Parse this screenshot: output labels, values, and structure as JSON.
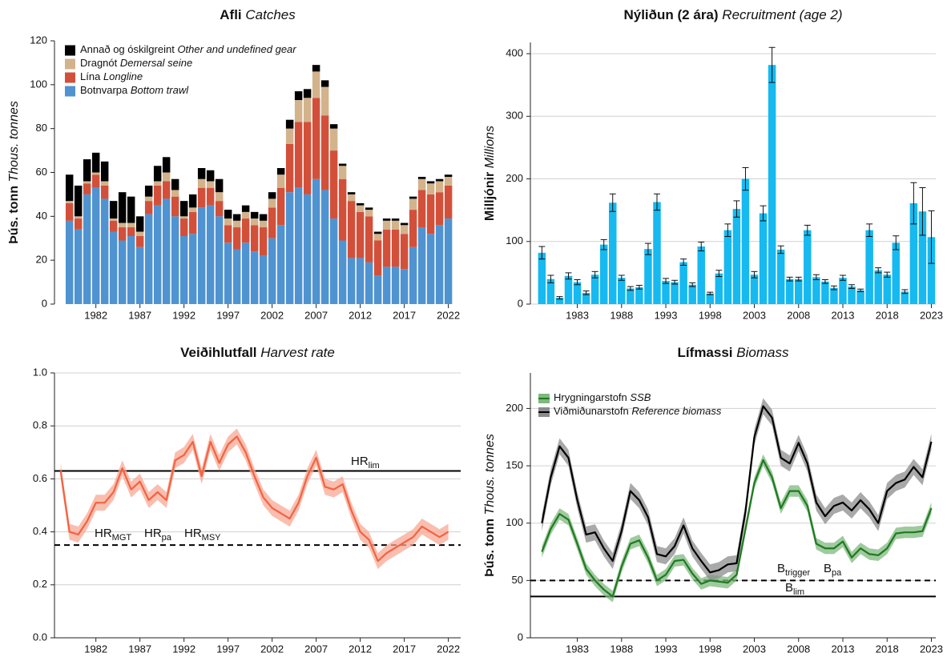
{
  "chart_data": [
    {
      "type": "bar",
      "stacked": true,
      "title": "Afli",
      "title_en": "Catches",
      "ylabel": "Þús. tonn",
      "ylabel_en": "Thous. tonnes",
      "x": [
        1979,
        1980,
        1981,
        1982,
        1983,
        1984,
        1985,
        1986,
        1987,
        1988,
        1989,
        1990,
        1991,
        1992,
        1993,
        1994,
        1995,
        1996,
        1997,
        1998,
        1999,
        2000,
        2001,
        2002,
        2003,
        2004,
        2005,
        2006,
        2007,
        2008,
        2009,
        2010,
        2011,
        2012,
        2013,
        2014,
        2015,
        2016,
        2017,
        2018,
        2019,
        2020,
        2021,
        2022
      ],
      "series": [
        {
          "name": "Botnvarpa",
          "name_en": "Bottom trawl",
          "color": "#4f93d1",
          "values": [
            38,
            34,
            50,
            53,
            48,
            33,
            29,
            31,
            26,
            41,
            45,
            48,
            40,
            31,
            32,
            44,
            45,
            40,
            28,
            25,
            28,
            24,
            22,
            30,
            36,
            51,
            53,
            50,
            57,
            52,
            39,
            29,
            21,
            21,
            19,
            13,
            17,
            17,
            16,
            26,
            35,
            32,
            36,
            39
          ]
        },
        {
          "name": "Lína",
          "name_en": "Longline",
          "color": "#d2503a",
          "values": [
            8,
            5,
            5,
            6,
            6,
            5,
            6,
            4,
            5,
            6,
            9,
            8,
            9,
            8,
            10,
            9,
            8,
            7,
            8,
            10,
            11,
            12,
            13,
            14,
            17,
            22,
            30,
            33,
            37,
            34,
            31,
            28,
            26,
            21,
            21,
            16,
            17,
            17,
            16,
            17,
            17,
            18,
            15,
            15
          ]
        },
        {
          "name": "Dragnót",
          "name_en": "Demersal seine",
          "color": "#d3b38c",
          "values": [
            1,
            1,
            1,
            1,
            2,
            1,
            2,
            2,
            2,
            2,
            2,
            4,
            3,
            1,
            2,
            4,
            3,
            4,
            3,
            3,
            3,
            3,
            3,
            4,
            6,
            7,
            10,
            11,
            12,
            13,
            10,
            6,
            3,
            3,
            3,
            3,
            4,
            4,
            4,
            5,
            5,
            5,
            5,
            4
          ]
        },
        {
          "name": "Annað og óskilgreint",
          "name_en": "Other and undefined gear",
          "color": "#000000",
          "values": [
            12,
            14,
            10,
            9,
            9,
            8,
            14,
            12,
            7,
            5,
            7,
            7,
            5,
            7,
            6,
            5,
            5,
            6,
            4,
            3,
            3,
            3,
            3,
            3,
            3,
            4,
            4,
            4,
            3,
            3,
            2,
            1,
            1,
            1,
            1,
            1,
            1,
            1,
            1,
            1,
            1,
            1,
            1,
            1
          ]
        }
      ],
      "xlim": [
        1977.3,
        2023.4
      ],
      "xticks": [
        1982,
        1987,
        1992,
        1997,
        2002,
        2007,
        2012,
        2017,
        2022
      ],
      "ylim": [
        0,
        120
      ],
      "yticks": [
        0,
        20,
        40,
        60,
        80,
        100,
        120
      ],
      "grid": false,
      "legend": "top-left"
    },
    {
      "type": "bar",
      "title": "Nýliðun (2 ára)",
      "title_en": "Recruitment (age 2)",
      "ylabel": "Milljónir",
      "ylabel_en": "Millions",
      "color": "#16b9f0",
      "x": [
        1979,
        1980,
        1981,
        1982,
        1983,
        1984,
        1985,
        1986,
        1987,
        1988,
        1989,
        1990,
        1991,
        1992,
        1993,
        1994,
        1995,
        1996,
        1997,
        1998,
        1999,
        2000,
        2001,
        2002,
        2003,
        2004,
        2005,
        2006,
        2007,
        2008,
        2009,
        2010,
        2011,
        2012,
        2013,
        2014,
        2015,
        2016,
        2017,
        2018,
        2019,
        2020,
        2021,
        2022,
        2023
      ],
      "values": [
        82,
        40,
        10,
        45,
        35,
        18,
        47,
        95,
        162,
        42,
        25,
        27,
        88,
        163,
        37,
        35,
        67,
        31,
        92,
        17,
        49,
        118,
        152,
        200,
        47,
        145,
        382,
        87,
        40,
        40,
        118,
        43,
        36,
        26,
        42,
        28,
        22,
        118,
        54,
        47,
        98,
        20,
        161,
        148,
        107
      ],
      "errors": [
        10,
        6,
        2,
        5,
        4,
        3,
        5,
        8,
        14,
        4,
        3,
        3,
        9,
        13,
        4,
        3,
        5,
        3,
        7,
        2,
        5,
        10,
        13,
        18,
        5,
        12,
        28,
        6,
        3,
        3,
        8,
        4,
        3,
        3,
        4,
        3,
        2,
        10,
        4,
        4,
        11,
        3,
        33,
        38,
        42
      ],
      "xlim": [
        1977.7,
        2023.5
      ],
      "xticks": [
        1983,
        1988,
        1993,
        1998,
        2003,
        2008,
        2013,
        2018,
        2023
      ],
      "ylim": [
        0,
        418
      ],
      "yticks": [
        0,
        100,
        200,
        300,
        400
      ],
      "grid": true
    },
    {
      "type": "line",
      "title": "Veiðihlutfall",
      "title_en": "Harvest rate",
      "x": [
        1978,
        1979,
        1980,
        1981,
        1982,
        1983,
        1984,
        1985,
        1986,
        1987,
        1988,
        1989,
        1990,
        1991,
        1992,
        1993,
        1994,
        1995,
        1996,
        1997,
        1998,
        1999,
        2000,
        2001,
        2002,
        2003,
        2004,
        2005,
        2006,
        2007,
        2008,
        2009,
        2010,
        2011,
        2012,
        2013,
        2014,
        2015,
        2016,
        2017,
        2018,
        2019,
        2020,
        2021,
        2022
      ],
      "series": [
        {
          "color": "#f4623f",
          "band_color": "#f7a894",
          "values": [
            0.63,
            0.4,
            0.39,
            0.44,
            0.51,
            0.51,
            0.55,
            0.64,
            0.56,
            0.59,
            0.52,
            0.55,
            0.52,
            0.67,
            0.69,
            0.74,
            0.61,
            0.74,
            0.66,
            0.73,
            0.76,
            0.7,
            0.61,
            0.53,
            0.49,
            0.47,
            0.45,
            0.51,
            0.61,
            0.68,
            0.57,
            0.56,
            0.58,
            0.48,
            0.4,
            0.37,
            0.29,
            0.32,
            0.34,
            0.36,
            0.38,
            0.42,
            0.4,
            0.38,
            0.4
          ],
          "upper": [
            0.66,
            0.43,
            0.42,
            0.47,
            0.54,
            0.54,
            0.58,
            0.67,
            0.59,
            0.62,
            0.55,
            0.58,
            0.55,
            0.7,
            0.72,
            0.77,
            0.64,
            0.77,
            0.69,
            0.76,
            0.79,
            0.73,
            0.64,
            0.56,
            0.52,
            0.5,
            0.48,
            0.54,
            0.64,
            0.71,
            0.6,
            0.59,
            0.61,
            0.51,
            0.43,
            0.4,
            0.32,
            0.35,
            0.37,
            0.39,
            0.41,
            0.45,
            0.43,
            0.41,
            0.43
          ],
          "lower": [
            0.6,
            0.37,
            0.36,
            0.41,
            0.48,
            0.48,
            0.52,
            0.61,
            0.53,
            0.56,
            0.49,
            0.52,
            0.49,
            0.64,
            0.66,
            0.71,
            0.58,
            0.71,
            0.63,
            0.7,
            0.73,
            0.67,
            0.58,
            0.5,
            0.46,
            0.44,
            0.42,
            0.48,
            0.58,
            0.65,
            0.54,
            0.53,
            0.55,
            0.45,
            0.37,
            0.34,
            0.26,
            0.29,
            0.31,
            0.33,
            0.35,
            0.39,
            0.37,
            0.35,
            0.37
          ]
        }
      ],
      "hlines": [
        {
          "value": 0.63,
          "style": "solid",
          "labels": [
            {
              "text": "HR",
              "sub": "lim"
            }
          ]
        },
        {
          "value": 0.35,
          "style": "dashed",
          "labels": [
            {
              "text": "HR",
              "sub": "MGT"
            },
            {
              "text": "HR",
              "sub": "pa"
            },
            {
              "text": "HR",
              "sub": "MSY"
            }
          ]
        }
      ],
      "xlim": [
        1977.3,
        2023.4
      ],
      "xticks": [
        1982,
        1987,
        1992,
        1997,
        2002,
        2007,
        2012,
        2017,
        2022
      ],
      "ylim": [
        0,
        1
      ],
      "yticks": [
        {
          "value": 0,
          "label": "0.0"
        },
        0.2,
        0.4,
        0.6,
        0.8,
        {
          "value": 1,
          "label": "1.0"
        }
      ],
      "grid": true
    },
    {
      "type": "line",
      "title": "Lífmassi",
      "title_en": "Biomass",
      "ylabel": "Þús. tonn",
      "ylabel_en": "Thous. tonnes",
      "x": [
        1979,
        1980,
        1981,
        1982,
        1983,
        1984,
        1985,
        1986,
        1987,
        1988,
        1989,
        1990,
        1991,
        1992,
        1993,
        1994,
        1995,
        1996,
        1997,
        1998,
        1999,
        2000,
        2001,
        2002,
        2003,
        2004,
        2005,
        2006,
        2007,
        2008,
        2009,
        2010,
        2011,
        2012,
        2013,
        2014,
        2015,
        2016,
        2017,
        2018,
        2019,
        2020,
        2021,
        2022,
        2023
      ],
      "series": [
        {
          "name": "Hrygningarstofn",
          "name_en": "SSB",
          "color": "#1f7a1f",
          "band_color": "#7fb87f",
          "values": [
            75,
            95,
            108,
            103,
            82,
            60,
            50,
            42,
            36,
            62,
            82,
            85,
            70,
            50,
            55,
            67,
            68,
            56,
            47,
            50,
            49,
            48,
            55,
            95,
            135,
            155,
            140,
            113,
            128,
            128,
            115,
            82,
            78,
            78,
            84,
            70,
            78,
            73,
            72,
            78,
            91,
            92,
            92,
            93,
            113
          ],
          "upper": [
            80,
            100,
            113,
            108,
            87,
            65,
            55,
            47,
            41,
            67,
            87,
            90,
            75,
            55,
            60,
            72,
            73,
            61,
            52,
            55,
            54,
            53,
            60,
            100,
            140,
            160,
            145,
            118,
            133,
            133,
            120,
            87,
            83,
            83,
            89,
            75,
            83,
            78,
            77,
            83,
            96,
            97,
            97,
            98,
            118
          ],
          "lower": [
            70,
            90,
            103,
            98,
            77,
            55,
            45,
            37,
            31,
            57,
            77,
            80,
            65,
            45,
            50,
            62,
            63,
            51,
            42,
            45,
            44,
            43,
            50,
            90,
            130,
            150,
            135,
            108,
            123,
            123,
            110,
            77,
            73,
            73,
            79,
            65,
            73,
            68,
            67,
            73,
            86,
            87,
            87,
            88,
            108
          ]
        },
        {
          "name": "Viðmiðunarstofn",
          "name_en": "Reference biomass",
          "color": "#000000",
          "band_color": "#8c8c8c",
          "values": [
            100,
            140,
            167,
            157,
            120,
            90,
            92,
            78,
            67,
            93,
            128,
            120,
            105,
            73,
            71,
            80,
            98,
            78,
            67,
            57,
            59,
            64,
            65,
            110,
            175,
            202,
            192,
            157,
            152,
            170,
            152,
            118,
            106,
            115,
            118,
            111,
            120,
            112,
            100,
            128,
            135,
            138,
            149,
            140,
            171
          ],
          "upper": [
            107,
            147,
            174,
            164,
            127,
            97,
            99,
            85,
            74,
            100,
            135,
            127,
            112,
            80,
            78,
            87,
            105,
            85,
            74,
            64,
            66,
            71,
            72,
            117,
            182,
            209,
            199,
            164,
            159,
            177,
            159,
            125,
            113,
            122,
            125,
            118,
            127,
            119,
            107,
            135,
            142,
            145,
            156,
            147,
            178
          ],
          "lower": [
            93,
            133,
            160,
            150,
            113,
            83,
            85,
            71,
            60,
            86,
            121,
            113,
            98,
            66,
            64,
            73,
            91,
            71,
            60,
            50,
            52,
            57,
            58,
            103,
            168,
            195,
            185,
            150,
            145,
            163,
            145,
            111,
            99,
            108,
            111,
            104,
            113,
            105,
            93,
            121,
            128,
            131,
            142,
            133,
            164
          ]
        }
      ],
      "hlines": [
        {
          "value": 50,
          "style": "dashed",
          "labels": [
            {
              "text": "B",
              "sub": "trigger"
            },
            {
              "text": "B",
              "sub": "pa"
            }
          ]
        },
        {
          "value": 36,
          "style": "solid",
          "labels": [
            {
              "text": "B",
              "sub": "lim"
            }
          ]
        }
      ],
      "xlim": [
        1977.7,
        2023.5
      ],
      "xticks": [
        1983,
        1988,
        1993,
        1998,
        2003,
        2008,
        2013,
        2018,
        2023
      ],
      "ylim": [
        0,
        231
      ],
      "yticks": [
        0,
        50,
        100,
        150,
        200
      ],
      "grid": true,
      "legend": "top-left"
    }
  ]
}
